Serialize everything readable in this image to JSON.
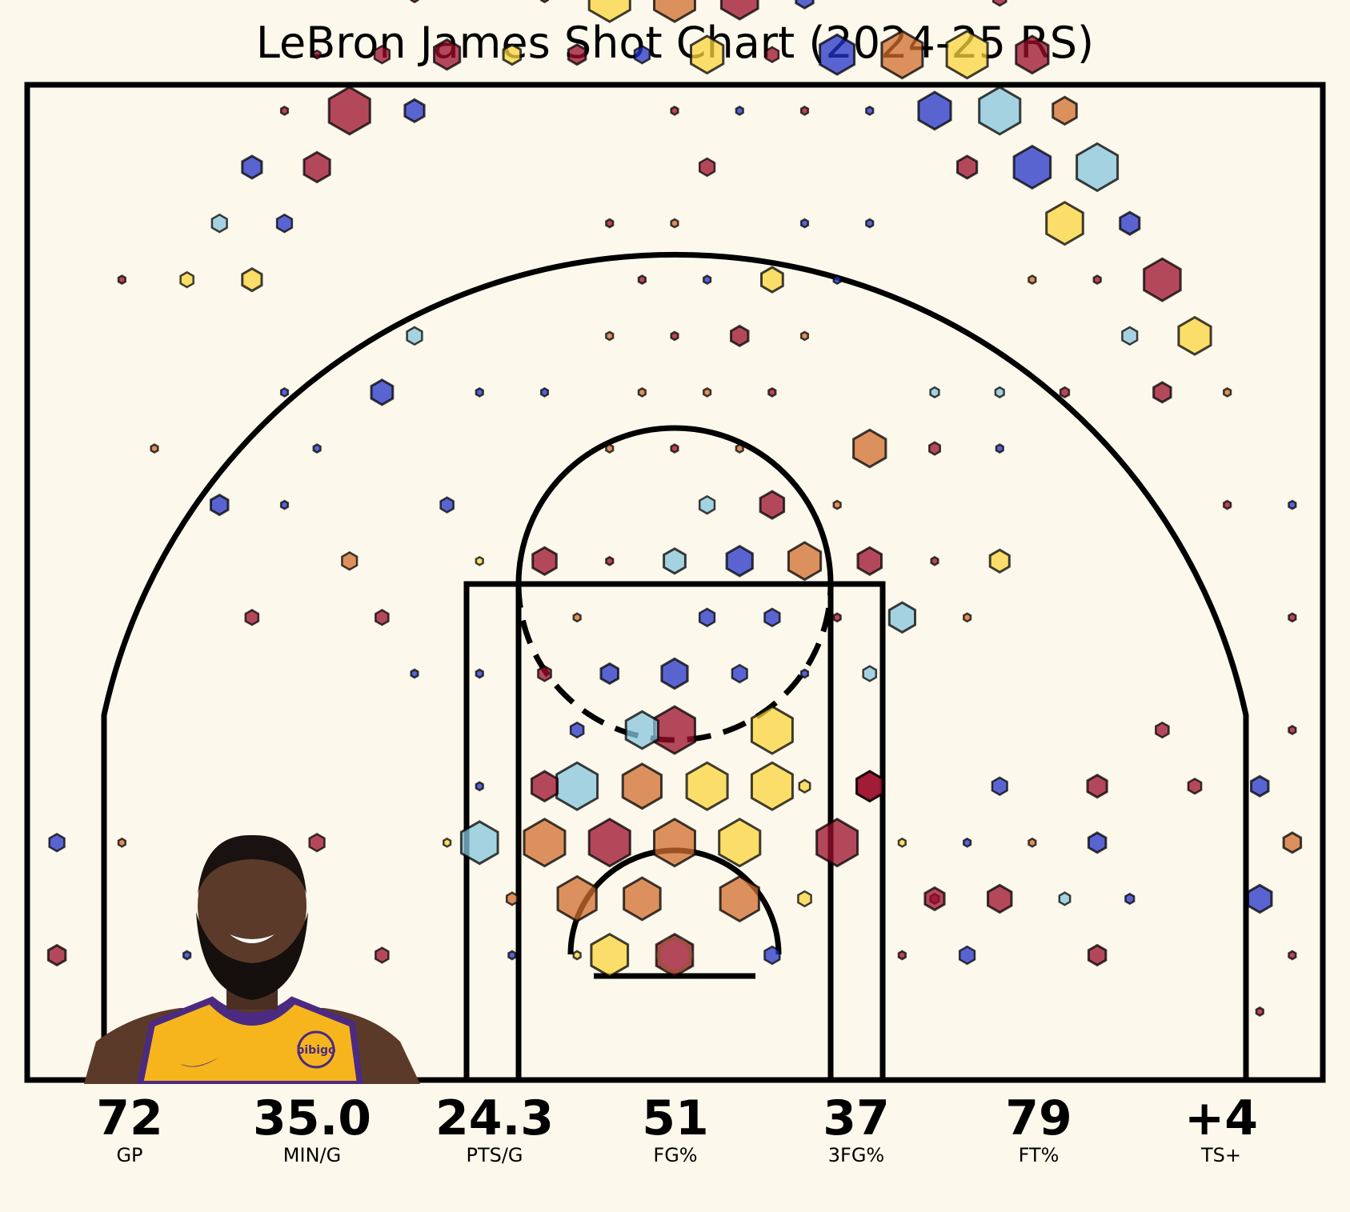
{
  "title": "LeBron James Shot Chart (2024-25 RS)",
  "colors": {
    "background": "#fdf8ec",
    "line": "#000000",
    "bin_palette": [
      "#9b0e2b",
      "#cf6d2d",
      "#f8d63d",
      "#87c6de",
      "#2233c8"
    ],
    "jersey": "#f6b51c",
    "jersey_trim": "#4b2a82",
    "skin": "#5b3a29"
  },
  "player_photo": {
    "icon": "player-headshot-icon",
    "logo_text": "bibigo"
  },
  "stats": [
    {
      "value": "72",
      "label": "GP"
    },
    {
      "value": "35.0",
      "label": "MIN/G"
    },
    {
      "value": "24.3",
      "label": "PTS/G"
    },
    {
      "value": "51",
      "label": "FG%"
    },
    {
      "value": "37",
      "label": "3FG%"
    },
    {
      "value": "79",
      "label": "FT%"
    },
    {
      "value": "+4",
      "label": "TS+"
    }
  ],
  "chart_data": {
    "type": "hexbin",
    "title": "LeBron James Shot Chart (2024-25 RS)",
    "xlabel": "",
    "ylabel": "",
    "xlim": [
      -250,
      250
    ],
    "ylim": [
      -47.5,
      422.5
    ],
    "units": "feet x10 from hoop",
    "size_encodes": "shot frequency (0-1)",
    "color_encodes": "efficiency class (0=red .. 4=blue)",
    "bins": [
      {
        "x": 0,
        "y": 0,
        "s": 0.85,
        "c": 0
      },
      {
        "x": -25,
        "y": 0,
        "s": 0.85,
        "c": 2
      },
      {
        "x": -12.5,
        "y": 21.7,
        "s": 0.85,
        "c": 1
      },
      {
        "x": -37.5,
        "y": 21.7,
        "s": 0.9,
        "c": 1
      },
      {
        "x": 25,
        "y": 21.7,
        "s": 0.9,
        "c": 1
      },
      {
        "x": -62.5,
        "y": 21.7,
        "s": 0.25,
        "c": 1
      },
      {
        "x": 50,
        "y": 21.7,
        "s": 0.3,
        "c": 2
      },
      {
        "x": 100,
        "y": 21.7,
        "s": 0.2,
        "c": 0
      },
      {
        "x": -37.5,
        "y": 0,
        "s": 0.12,
        "c": 2
      },
      {
        "x": 37.5,
        "y": 0,
        "s": 0.35,
        "c": 4
      },
      {
        "x": -25,
        "y": 43.3,
        "s": 0.95,
        "c": 0
      },
      {
        "x": 0,
        "y": 43.3,
        "s": 0.95,
        "c": 1
      },
      {
        "x": 25,
        "y": 43.3,
        "s": 0.95,
        "c": 2
      },
      {
        "x": -50,
        "y": 43.3,
        "s": 0.95,
        "c": 1
      },
      {
        "x": -75,
        "y": 43.3,
        "s": 0.85,
        "c": 3
      },
      {
        "x": 62.5,
        "y": 43.3,
        "s": 0.95,
        "c": 0
      },
      {
        "x": -12.5,
        "y": 65,
        "s": 0.9,
        "c": 1
      },
      {
        "x": 12.5,
        "y": 65,
        "s": 0.95,
        "c": 2
      },
      {
        "x": -37.5,
        "y": 65,
        "s": 0.95,
        "c": 3
      },
      {
        "x": 37.5,
        "y": 65,
        "s": 0.95,
        "c": 2
      },
      {
        "x": -50,
        "y": 65,
        "s": 0.6,
        "c": 0
      },
      {
        "x": 50,
        "y": 65,
        "s": 0.25,
        "c": 2
      },
      {
        "x": 75,
        "y": 65,
        "s": 0.6,
        "c": 0
      },
      {
        "x": 0,
        "y": 86.6,
        "s": 0.95,
        "c": 0
      },
      {
        "x": 37.5,
        "y": 86.6,
        "s": 0.95,
        "c": 2
      },
      {
        "x": -12.5,
        "y": 86.6,
        "s": 0.75,
        "c": 3
      },
      {
        "x": -37.5,
        "y": 86.6,
        "s": 0.3,
        "c": 4
      },
      {
        "x": 25,
        "y": 108.3,
        "s": 0.35,
        "c": 4
      },
      {
        "x": 0,
        "y": 108.3,
        "s": 0.6,
        "c": 4
      },
      {
        "x": -25,
        "y": 108.3,
        "s": 0.4,
        "c": 4
      },
      {
        "x": -50,
        "y": 108.3,
        "s": 0.3,
        "c": 0
      },
      {
        "x": 50,
        "y": 108.3,
        "s": 0.15,
        "c": 4
      },
      {
        "x": 75,
        "y": 108.3,
        "s": 0.3,
        "c": 3
      },
      {
        "x": -37.5,
        "y": 129.9,
        "s": 0.15,
        "c": 1
      },
      {
        "x": 12.5,
        "y": 129.9,
        "s": 0.35,
        "c": 4
      },
      {
        "x": 37.5,
        "y": 129.9,
        "s": 0.35,
        "c": 4
      },
      {
        "x": 62.5,
        "y": 129.9,
        "s": 0.15,
        "c": 0
      },
      {
        "x": 87.5,
        "y": 129.9,
        "s": 0.6,
        "c": 3
      },
      {
        "x": -50,
        "y": 151.6,
        "s": 0.55,
        "c": 0
      },
      {
        "x": -25,
        "y": 151.6,
        "s": 0.15,
        "c": 0
      },
      {
        "x": 0,
        "y": 151.6,
        "s": 0.5,
        "c": 3
      },
      {
        "x": 25,
        "y": 151.6,
        "s": 0.6,
        "c": 4
      },
      {
        "x": 50,
        "y": 151.6,
        "s": 0.75,
        "c": 1
      },
      {
        "x": 75,
        "y": 151.6,
        "s": 0.55,
        "c": 0
      },
      {
        "x": 12.5,
        "y": 173.2,
        "s": 0.35,
        "c": 3
      },
      {
        "x": 37.5,
        "y": 173.2,
        "s": 0.55,
        "c": 0
      },
      {
        "x": 62.5,
        "y": 173.2,
        "s": 0.15,
        "c": 1
      },
      {
        "x": -25,
        "y": 194.9,
        "s": 0.15,
        "c": 1
      },
      {
        "x": 0,
        "y": 194.9,
        "s": 0.15,
        "c": 0
      },
      {
        "x": 25,
        "y": 194.9,
        "s": 0.15,
        "c": 1
      },
      {
        "x": 75,
        "y": 194.9,
        "s": 0.75,
        "c": 1
      },
      {
        "x": -12.5,
        "y": 216.5,
        "s": 0.15,
        "c": 1
      },
      {
        "x": 12.5,
        "y": 216.5,
        "s": 0.15,
        "c": 1
      },
      {
        "x": 37.5,
        "y": 216.5,
        "s": 0.15,
        "c": 0
      },
      {
        "x": 0,
        "y": 238.2,
        "s": 0.15,
        "c": 0
      },
      {
        "x": 25,
        "y": 238.2,
        "s": 0.4,
        "c": 0
      },
      {
        "x": 50,
        "y": 238.2,
        "s": 0.15,
        "c": 1
      },
      {
        "x": -25,
        "y": 238.2,
        "s": 0.15,
        "c": 1
      },
      {
        "x": -12.5,
        "y": 259.8,
        "s": 0.15,
        "c": 0
      },
      {
        "x": 12.5,
        "y": 259.8,
        "s": 0.15,
        "c": 4
      },
      {
        "x": 37.5,
        "y": 259.8,
        "s": 0.5,
        "c": 2
      },
      {
        "x": 62.5,
        "y": 259.8,
        "s": 0.15,
        "c": 4
      },
      {
        "x": 0,
        "y": 281.5,
        "s": 0.15,
        "c": 1
      },
      {
        "x": -25,
        "y": 281.5,
        "s": 0.15,
        "c": 0
      },
      {
        "x": 50,
        "y": 281.5,
        "s": 0.15,
        "c": 4
      },
      {
        "x": 75,
        "y": 281.5,
        "s": 0.15,
        "c": 4
      },
      {
        "x": 12.5,
        "y": 303.1,
        "s": 0.35,
        "c": 0
      },
      {
        "x": 0,
        "y": 324.8,
        "s": 0.15,
        "c": 0
      },
      {
        "x": 25,
        "y": 324.8,
        "s": 0.15,
        "c": 4
      },
      {
        "x": 50,
        "y": 324.8,
        "s": 0.15,
        "c": 0
      },
      {
        "x": 75,
        "y": 324.8,
        "s": 0.15,
        "c": 4
      },
      {
        "x": -12.5,
        "y": 346.4,
        "s": 0.35,
        "c": 4
      },
      {
        "x": 12.5,
        "y": 346.4,
        "s": 0.75,
        "c": 2
      },
      {
        "x": 37.5,
        "y": 346.4,
        "s": 0.3,
        "c": 0
      },
      {
        "x": 62.5,
        "y": 346.4,
        "s": 0.8,
        "c": 4
      },
      {
        "x": 87.5,
        "y": 346.4,
        "s": 0.95,
        "c": 1
      },
      {
        "x": 112.5,
        "y": 346.4,
        "s": 0.95,
        "c": 2
      },
      {
        "x": 137.5,
        "y": 346.4,
        "s": 0.75,
        "c": 0
      },
      {
        "x": -37.5,
        "y": 346.4,
        "s": 0.4,
        "c": 0
      },
      {
        "x": -62.5,
        "y": 346.4,
        "s": 0.4,
        "c": 2
      },
      {
        "x": -87.5,
        "y": 346.4,
        "s": 0.6,
        "c": 0
      },
      {
        "x": -112.5,
        "y": 346.4,
        "s": 0.35,
        "c": 0
      },
      {
        "x": -137.5,
        "y": 346.4,
        "s": 0.15,
        "c": 0
      },
      {
        "x": -25,
        "y": 368.1,
        "s": 0.95,
        "c": 2
      },
      {
        "x": 0,
        "y": 368.1,
        "s": 0.95,
        "c": 1
      },
      {
        "x": 25,
        "y": 368.1,
        "s": 0.85,
        "c": 0
      },
      {
        "x": 50,
        "y": 368.1,
        "s": 0.4,
        "c": 4
      },
      {
        "x": 125,
        "y": 368.1,
        "s": 0.3,
        "c": 0
      },
      {
        "x": -50,
        "y": 368.1,
        "s": 0.15,
        "c": 0
      },
      {
        "x": -100,
        "y": 368.1,
        "s": 0.15,
        "c": 0
      },
      {
        "x": -12.5,
        "y": 389.7,
        "s": 0.25,
        "c": 2
      },
      {
        "x": 12.5,
        "y": 389.7,
        "s": 0.55,
        "c": 2
      },
      {
        "x": 37.5,
        "y": 389.7,
        "s": 0.75,
        "c": 1
      },
      {
        "x": 62.5,
        "y": 389.7,
        "s": 0.25,
        "c": 0
      },
      {
        "x": 87.5,
        "y": 389.7,
        "s": 0.15,
        "c": 4
      },
      {
        "x": -112.5,
        "y": 389.7,
        "s": 0.15,
        "c": 0
      },
      {
        "x": 0,
        "y": 411.4,
        "s": 0.15,
        "c": 4
      },
      {
        "x": 100,
        "y": 411.4,
        "s": 0.15,
        "c": 0
      },
      {
        "x": -125,
        "y": 324.8,
        "s": 0.95,
        "c": 0
      },
      {
        "x": -100,
        "y": 324.8,
        "s": 0.45,
        "c": 4
      },
      {
        "x": -150,
        "y": 324.8,
        "s": 0.15,
        "c": 0
      },
      {
        "x": 100,
        "y": 324.8,
        "s": 0.75,
        "c": 4
      },
      {
        "x": 125,
        "y": 324.8,
        "s": 0.95,
        "c": 3
      },
      {
        "x": 150,
        "y": 324.8,
        "s": 0.55,
        "c": 1
      },
      {
        "x": -137.5,
        "y": 303.1,
        "s": 0.6,
        "c": 0
      },
      {
        "x": -162.5,
        "y": 303.1,
        "s": 0.45,
        "c": 4
      },
      {
        "x": 112.5,
        "y": 303.1,
        "s": 0.45,
        "c": 0
      },
      {
        "x": 137.5,
        "y": 303.1,
        "s": 0.85,
        "c": 4
      },
      {
        "x": 162.5,
        "y": 303.1,
        "s": 0.95,
        "c": 3
      },
      {
        "x": -150,
        "y": 281.5,
        "s": 0.35,
        "c": 4
      },
      {
        "x": -175,
        "y": 281.5,
        "s": 0.35,
        "c": 3
      },
      {
        "x": 150,
        "y": 281.5,
        "s": 0.85,
        "c": 2
      },
      {
        "x": 175,
        "y": 281.5,
        "s": 0.45,
        "c": 4
      },
      {
        "x": -162.5,
        "y": 259.8,
        "s": 0.45,
        "c": 2
      },
      {
        "x": -187.5,
        "y": 259.8,
        "s": 0.3,
        "c": 2
      },
      {
        "x": -212.5,
        "y": 259.8,
        "s": 0.15,
        "c": 0
      },
      {
        "x": 137.5,
        "y": 259.8,
        "s": 0.15,
        "c": 1
      },
      {
        "x": 162.5,
        "y": 259.8,
        "s": 0.15,
        "c": 0
      },
      {
        "x": 187.5,
        "y": 259.8,
        "s": 0.85,
        "c": 0
      },
      {
        "x": 175,
        "y": 238.2,
        "s": 0.35,
        "c": 3
      },
      {
        "x": 200,
        "y": 238.2,
        "s": 0.75,
        "c": 2
      },
      {
        "x": -100,
        "y": 238.2,
        "s": 0.35,
        "c": 3
      },
      {
        "x": -50,
        "y": 216.5,
        "s": 0.15,
        "c": 4
      },
      {
        "x": -75,
        "y": 216.5,
        "s": 0.15,
        "c": 4
      },
      {
        "x": -112.5,
        "y": 216.5,
        "s": 0.5,
        "c": 4
      },
      {
        "x": -150,
        "y": 216.5,
        "s": 0.15,
        "c": 4
      },
      {
        "x": 100,
        "y": 216.5,
        "s": 0.2,
        "c": 3
      },
      {
        "x": 125,
        "y": 216.5,
        "s": 0.2,
        "c": 3
      },
      {
        "x": 150,
        "y": 216.5,
        "s": 0.2,
        "c": 0
      },
      {
        "x": 187.5,
        "y": 216.5,
        "s": 0.4,
        "c": 0
      },
      {
        "x": 212.5,
        "y": 216.5,
        "s": 0.15,
        "c": 1
      },
      {
        "x": -137.5,
        "y": 194.9,
        "s": 0.15,
        "c": 4
      },
      {
        "x": -200,
        "y": 194.9,
        "s": 0.15,
        "c": 1
      },
      {
        "x": 100,
        "y": 194.9,
        "s": 0.25,
        "c": 0
      },
      {
        "x": 125,
        "y": 194.9,
        "s": 0.15,
        "c": 4
      },
      {
        "x": -175,
        "y": 173.2,
        "s": 0.4,
        "c": 4
      },
      {
        "x": -150,
        "y": 173.2,
        "s": 0.15,
        "c": 4
      },
      {
        "x": -87.5,
        "y": 173.2,
        "s": 0.3,
        "c": 4
      },
      {
        "x": 212.5,
        "y": 173.2,
        "s": 0.15,
        "c": 0
      },
      {
        "x": 237.5,
        "y": 173.2,
        "s": 0.15,
        "c": 4
      },
      {
        "x": -125,
        "y": 151.6,
        "s": 0.35,
        "c": 1
      },
      {
        "x": -75,
        "y": 151.6,
        "s": 0.15,
        "c": 2
      },
      {
        "x": 100,
        "y": 151.6,
        "s": 0.15,
        "c": 0
      },
      {
        "x": 125,
        "y": 151.6,
        "s": 0.45,
        "c": 2
      },
      {
        "x": -162.5,
        "y": 129.9,
        "s": 0.3,
        "c": 0
      },
      {
        "x": -112.5,
        "y": 129.9,
        "s": 0.3,
        "c": 0
      },
      {
        "x": 112.5,
        "y": 129.9,
        "s": 0.15,
        "c": 1
      },
      {
        "x": 237.5,
        "y": 129.9,
        "s": 0.15,
        "c": 0
      },
      {
        "x": -100,
        "y": 108.3,
        "s": 0.15,
        "c": 4
      },
      {
        "x": -75,
        "y": 108.3,
        "s": 0.15,
        "c": 4
      },
      {
        "x": 75,
        "y": 65,
        "s": 0.6,
        "c": 0
      },
      {
        "x": 187.5,
        "y": 86.6,
        "s": 0.3,
        "c": 0
      },
      {
        "x": 237.5,
        "y": 86.6,
        "s": 0.15,
        "c": 0
      },
      {
        "x": -75,
        "y": 65,
        "s": 0.15,
        "c": 4
      },
      {
        "x": 125,
        "y": 65,
        "s": 0.35,
        "c": 4
      },
      {
        "x": 162.5,
        "y": 65,
        "s": 0.45,
        "c": 0
      },
      {
        "x": 200,
        "y": 65,
        "s": 0.3,
        "c": 0
      },
      {
        "x": 225,
        "y": 65,
        "s": 0.4,
        "c": 4
      },
      {
        "x": -237.5,
        "y": 43.3,
        "s": 0.35,
        "c": 4
      },
      {
        "x": -212.5,
        "y": 43.3,
        "s": 0.15,
        "c": 1
      },
      {
        "x": -137.5,
        "y": 43.3,
        "s": 0.35,
        "c": 0
      },
      {
        "x": -87.5,
        "y": 43.3,
        "s": 0.15,
        "c": 2
      },
      {
        "x": 87.5,
        "y": 43.3,
        "s": 0.15,
        "c": 2
      },
      {
        "x": 112.5,
        "y": 43.3,
        "s": 0.15,
        "c": 4
      },
      {
        "x": 137.5,
        "y": 43.3,
        "s": 0.15,
        "c": 1
      },
      {
        "x": 162.5,
        "y": 43.3,
        "s": 0.4,
        "c": 4
      },
      {
        "x": 237.5,
        "y": 43.3,
        "s": 0.4,
        "c": 1
      },
      {
        "x": 100,
        "y": 21.7,
        "s": 0.45,
        "c": 0
      },
      {
        "x": 125,
        "y": 21.7,
        "s": 0.55,
        "c": 0
      },
      {
        "x": 150,
        "y": 21.7,
        "s": 0.25,
        "c": 3
      },
      {
        "x": 175,
        "y": 21.7,
        "s": 0.2,
        "c": 4
      },
      {
        "x": 225,
        "y": 21.7,
        "s": 0.55,
        "c": 4
      },
      {
        "x": -237.5,
        "y": 0,
        "s": 0.4,
        "c": 0
      },
      {
        "x": -187.5,
        "y": 0,
        "s": 0.15,
        "c": 4
      },
      {
        "x": -112.5,
        "y": 0,
        "s": 0.3,
        "c": 0
      },
      {
        "x": -62.5,
        "y": 0,
        "s": 0.15,
        "c": 4
      },
      {
        "x": 87.5,
        "y": 0,
        "s": 0.15,
        "c": 0
      },
      {
        "x": 112.5,
        "y": 0,
        "s": 0.35,
        "c": 4
      },
      {
        "x": 162.5,
        "y": 0,
        "s": 0.4,
        "c": 0
      },
      {
        "x": 237.5,
        "y": 0,
        "s": 0.15,
        "c": 0
      },
      {
        "x": 225,
        "y": -21.7,
        "s": 0.15,
        "c": 0
      }
    ]
  }
}
